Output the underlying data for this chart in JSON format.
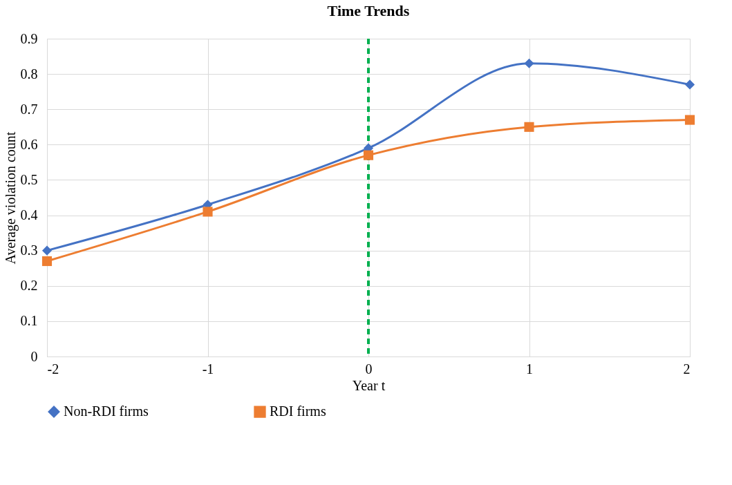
{
  "chart_data": {
    "type": "line",
    "title": "Time Trends",
    "xlabel": "Year t",
    "ylabel": "Average violation count",
    "x": [
      -2,
      -1,
      0,
      1,
      2
    ],
    "series": [
      {
        "name": "Non-RDI firms",
        "color": "#4472c4",
        "marker": "diamond",
        "values": [
          0.3,
          0.43,
          0.59,
          0.83,
          0.77
        ]
      },
      {
        "name": "RDI firms",
        "color": "#ed7d31",
        "marker": "square",
        "values": [
          0.27,
          0.41,
          0.57,
          0.65,
          0.67
        ]
      }
    ],
    "xlim": [
      -2,
      2
    ],
    "xticks": [
      -2,
      -1,
      0,
      1,
      2
    ],
    "ylim": [
      0,
      0.9
    ],
    "yticks": [
      0,
      0.1,
      0.2,
      0.3,
      0.4,
      0.5,
      0.6,
      0.7,
      0.8,
      0.9
    ],
    "ref_lines": [
      {
        "axis": "x",
        "value": 0,
        "color": "#00b050",
        "line_style": "dashed"
      }
    ],
    "grid": true,
    "legend": "bottom",
    "line_style": "solid"
  }
}
